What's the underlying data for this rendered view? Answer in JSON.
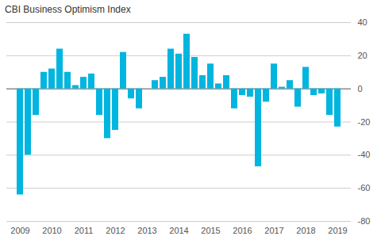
{
  "chart_data": {
    "type": "bar",
    "title": "CBI Business Optimism Index",
    "categories": [
      "2009",
      null,
      null,
      null,
      "2010",
      null,
      null,
      null,
      "2011",
      null,
      null,
      null,
      "2012",
      null,
      null,
      null,
      "2013",
      null,
      null,
      null,
      "2014",
      null,
      null,
      null,
      "2015",
      null,
      null,
      null,
      "2016",
      null,
      null,
      null,
      "2017",
      null,
      null,
      null,
      "2018",
      null,
      null,
      null,
      "2019"
    ],
    "values": [
      -64,
      -40,
      -16,
      10,
      12,
      24,
      10,
      2,
      7,
      9,
      -16,
      -30,
      -25,
      22,
      -6,
      -12,
      0,
      5,
      7,
      24,
      21,
      33,
      19,
      8,
      15,
      3,
      8,
      -12,
      -4,
      -5,
      -47,
      -8,
      15,
      1,
      5,
      -11,
      13,
      -4,
      -3,
      -16,
      -23
    ],
    "color": "#00b5df",
    "ylim": [
      -80,
      40
    ],
    "yticks": [
      -80,
      -60,
      -40,
      -20,
      0,
      20,
      40
    ],
    "grid": true
  }
}
